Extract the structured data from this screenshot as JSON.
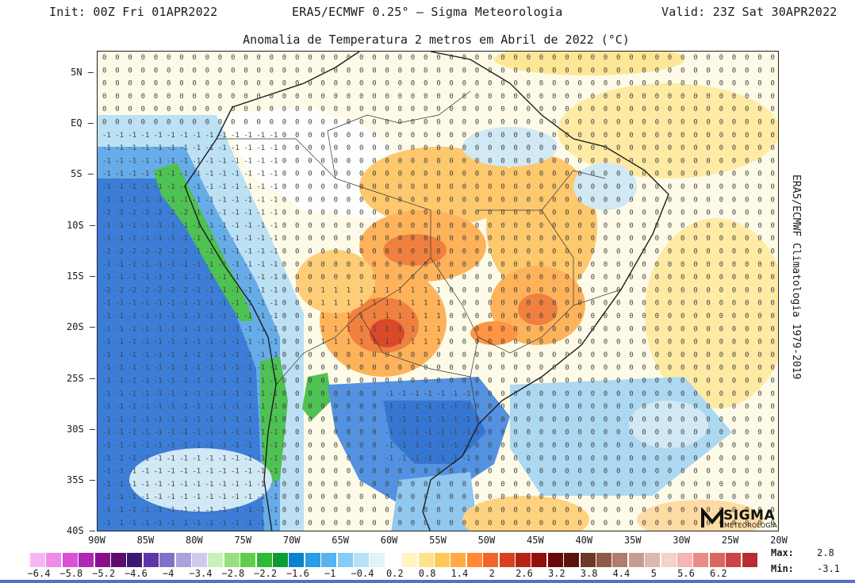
{
  "header": {
    "init": "Init: 00Z Fri 01APR2022",
    "center": "ERA5/ECMWF 0.25° — Sigma Meteorologia",
    "valid": "Valid: 23Z Sat 30APR2022"
  },
  "title": "Anomalia de Temperatura 2 metros em Abril de 2022 (°C)",
  "side_label": "ERA5/ECMWF Climatologia 1979-2019",
  "logo": {
    "big": "SIGMA",
    "small": "METEOROLOGIA"
  },
  "lat_labels": [
    "5N",
    "EQ",
    "5S",
    "10S",
    "15S",
    "20S",
    "25S",
    "30S",
    "35S",
    "40S"
  ],
  "lon_labels": [
    "90W",
    "85W",
    "80W",
    "75W",
    "70W",
    "65W",
    "60W",
    "55W",
    "50W",
    "45W",
    "40W",
    "35W",
    "30W",
    "25W",
    "20W"
  ],
  "colorbar": {
    "ticks": [
      "-6.4",
      "-5.8",
      "-5.2",
      "-4.6",
      "-4",
      "-3.4",
      "-2.8",
      "-2.2",
      "-1.6",
      "-1",
      "-0.4",
      "0.2",
      "0.8",
      "1.4",
      "2",
      "2.6",
      "3.2",
      "3.8",
      "4.4",
      "5",
      "5.6",
      "6.2"
    ],
    "colors": [
      "#f5b7f2",
      "#ef8ae9",
      "#dd4fd6",
      "#b128b4",
      "#8a0f8f",
      "#5b0a6e",
      "#3b1a6e",
      "#5a37a5",
      "#8173c9",
      "#aaa3df",
      "#cfcaf0",
      "#c8f1b8",
      "#98e07e",
      "#5fcd4c",
      "#2fb735",
      "#0e9a32",
      "#0a82d0",
      "#2a9be6",
      "#55b5f0",
      "#88ccf3",
      "#b6e1f6",
      "#e0f2fa",
      "#ffffff",
      "#fff4c2",
      "#ffe28d",
      "#ffc85d",
      "#ffab44",
      "#ff8a33",
      "#f3642a",
      "#d9401f",
      "#b82214",
      "#8f0f0a",
      "#6b0705",
      "#57140b",
      "#6e3a25",
      "#8e5b45",
      "#ae7e6b",
      "#c89d90",
      "#dcbab0",
      "#f0d3cb",
      "#f4b6b0",
      "#ea8b86",
      "#dd6461",
      "#cc4343",
      "#b72d32"
    ]
  },
  "stats": {
    "max_label": "Max:",
    "max_value": "2.8",
    "min_label": "Min:",
    "min_value": "-3.1"
  },
  "map": {
    "lon_range": [
      -90,
      -20
    ],
    "lat_range": [
      -40,
      8
    ],
    "field": "2 m temperature anomaly (°C)",
    "extremes": {
      "max": 2.8,
      "min": -3.1
    }
  }
}
